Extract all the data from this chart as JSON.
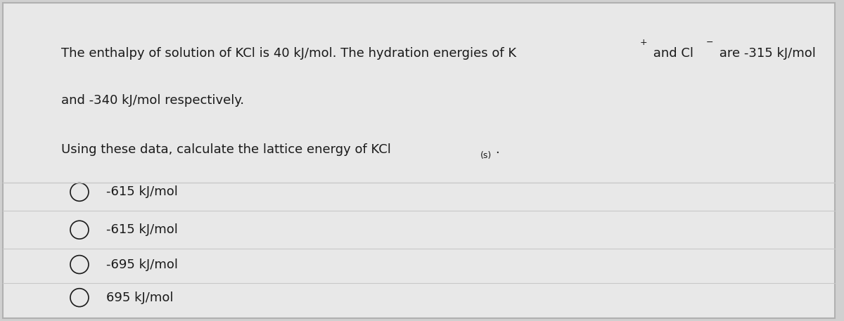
{
  "background_color": "#d0d0d0",
  "card_color": "#e8e8e8",
  "border_color": "#b0b0b0",
  "line_color": "#c8c8c8",
  "text_color": "#1a1a1a",
  "paragraph1_main": "The enthalpy of solution of KCl is 40 kJ/mol. The hydration energies of K",
  "paragraph1_sup1": "+",
  "paragraph1_mid": " and Cl",
  "paragraph1_sup2": "−",
  "paragraph1_end": " are -315 kJ/mol",
  "paragraph1_line2": "and -340 kJ/mol respectively.",
  "paragraph2_main": "Using these data, calculate the lattice energy of KCl",
  "paragraph2_sub": "(s)",
  "paragraph2_end": ".",
  "options": [
    "-615 kJ/mol",
    "-615 kJ/mol",
    "-695 kJ/mol",
    "695 kJ/mol"
  ],
  "font_size_para": 13,
  "font_size_option": 13,
  "font_size_super": 9
}
